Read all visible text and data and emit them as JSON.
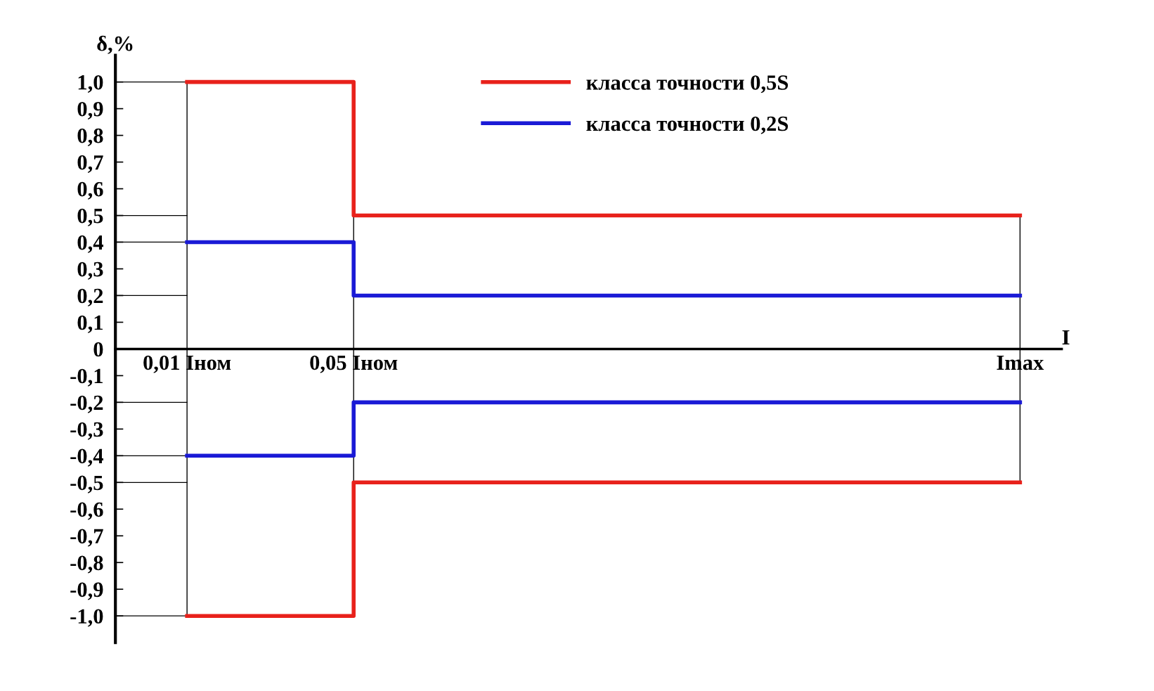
{
  "chart_data": {
    "type": "step",
    "categories": [
      "0,01 Iном",
      "0,05 Iном",
      null,
      null,
      null,
      "Imax"
    ],
    "series": [
      {
        "name": "класса точности 0,5S",
        "color": "#e8211b",
        "values": [
          1.0,
          0.5,
          0.5,
          0.5,
          0.5,
          0.5
        ]
      },
      {
        "color": "#e8211b",
        "values": [
          -1.0,
          -0.5,
          -0.5,
          -0.5,
          -0.5,
          -0.5
        ]
      },
      {
        "name": "класса точности 0,2S",
        "color": "#1a1ad6",
        "values": [
          0.4,
          0.2,
          0.2,
          0.2,
          0.2,
          0.2
        ]
      },
      {
        "color": "#1a1ad6",
        "values": [
          -0.4,
          -0.2,
          -0.2,
          -0.2,
          -0.2,
          -0.2
        ]
      }
    ],
    "ylabel": "δ,%",
    "xlabel": "I",
    "ylim": [
      -1.1,
      1.1
    ],
    "yticks": [
      {
        "value": 1.0,
        "label": "1,0"
      },
      {
        "value": 0.9,
        "label": "0,9"
      },
      {
        "value": 0.8,
        "label": "0,8"
      },
      {
        "value": 0.7,
        "label": "0,7"
      },
      {
        "value": 0.6,
        "label": "0,6"
      },
      {
        "value": 0.5,
        "label": "0,5"
      },
      {
        "value": 0.4,
        "label": "0,4"
      },
      {
        "value": 0.3,
        "label": "0,3"
      },
      {
        "value": 0.2,
        "label": "0,2"
      },
      {
        "value": 0.1,
        "label": "0,1"
      },
      0,
      {
        "value": -0.1,
        "label": "-0,1"
      },
      {
        "value": -0.2,
        "label": "-0,2"
      },
      {
        "value": -0.3,
        "label": "-0,3"
      },
      {
        "value": -0.4,
        "label": "-0,4"
      },
      {
        "value": -0.5,
        "label": "-0,5"
      },
      {
        "value": -0.6,
        "label": "-0,6"
      },
      {
        "value": -0.7,
        "label": "-0,7"
      },
      {
        "value": -0.8,
        "label": "-0,8"
      },
      {
        "value": -0.9,
        "label": "-0,9"
      },
      {
        "value": -1.0,
        "label": "-1,0"
      }
    ],
    "legend": "top",
    "grid": "x",
    "marker": "none",
    "line_style": "solid"
  }
}
